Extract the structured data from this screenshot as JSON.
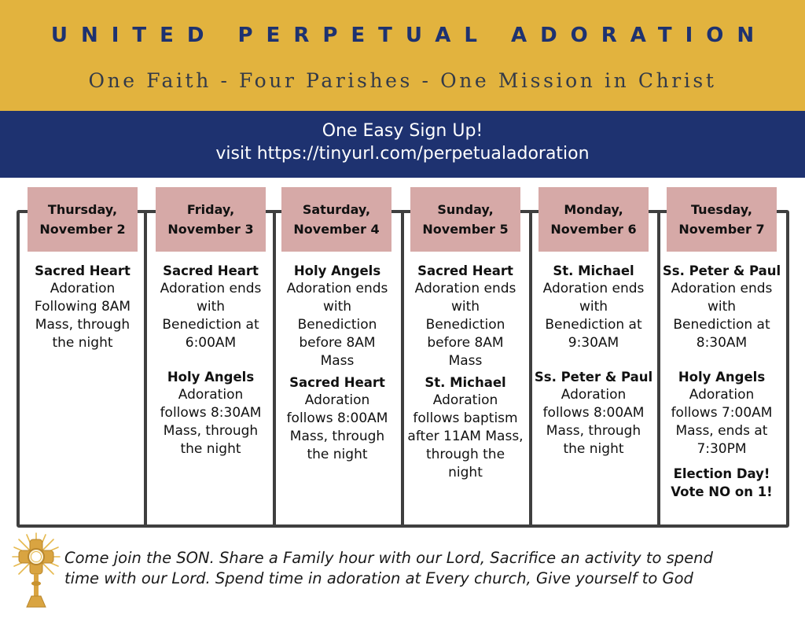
{
  "header": {
    "title": "UNITED PERPETUAL ADORATION",
    "subtitle": "One Faith - Four Parishes - One Mission in Christ"
  },
  "signup": {
    "line1": "One Easy Sign Up!",
    "line2": "visit https://tinyurl.com/perpetualadoration"
  },
  "colors": {
    "gold": "#e2b33e",
    "navy": "#1e3270",
    "header_pink": "#d6a9a7",
    "frame": "#3f3f3f"
  },
  "days": [
    {
      "day": "Thursday,",
      "date": "November 2",
      "entries": [
        {
          "parish": "Sacred Heart",
          "detail": "Adoration\nFollowing 8AM\nMass, through\nthe night"
        }
      ]
    },
    {
      "day": "Friday,",
      "date": "November 3",
      "entries": [
        {
          "parish": "Sacred Heart",
          "detail": "Adoration ends\nwith\nBenediction at\n6:00AM"
        },
        {
          "parish": "Holy Angels",
          "detail": "Adoration\nfollows  8:30AM\nMass, through\nthe night"
        }
      ]
    },
    {
      "day": "Saturday,",
      "date": "November 4",
      "entries": [
        {
          "parish": "Holy Angels",
          "detail": "Adoration ends\nwith\nBenediction\nbefore 8AM\nMass"
        },
        {
          "parish": "Sacred Heart",
          "detail": "Adoration\nfollows  8:00AM\nMass, through\nthe night"
        }
      ]
    },
    {
      "day": "Sunday,",
      "date": "November 5",
      "entries": [
        {
          "parish": "Sacred Heart",
          "detail": "Adoration ends\nwith\nBenediction\nbefore 8AM\nMass"
        },
        {
          "parish": "St. Michael",
          "detail": "Adoration\nfollows baptism\nafter 11AM Mass,\nthrough the\nnight"
        }
      ]
    },
    {
      "day": "Monday,",
      "date": "November 6",
      "entries": [
        {
          "parish": "St. Michael",
          "detail": "Adoration ends\nwith\nBenediction at\n9:30AM"
        },
        {
          "parish": "Ss. Peter & Paul",
          "detail": "Adoration\nfollows  8:00AM\nMass, through\nthe night"
        }
      ]
    },
    {
      "day": "Tuesday,",
      "date": "November 7",
      "entries": [
        {
          "parish": "Ss. Peter & Paul",
          "detail": "Adoration ends\nwith\nBenediction at\n8:30AM"
        },
        {
          "parish": "Holy Angels",
          "detail": "Adoration\nfollows  7:00AM\nMass, ends at\n7:30PM"
        }
      ],
      "note": "Election Day!\nVote NO on 1!"
    }
  ],
  "footer": {
    "line1": "Come join the SON. Share a Family hour with our Lord, Sacrifice an activity to spend",
    "line2": "time with our Lord. Spend time in adoration at Every church, Give yourself to God",
    "icon": "monstrance-icon"
  }
}
